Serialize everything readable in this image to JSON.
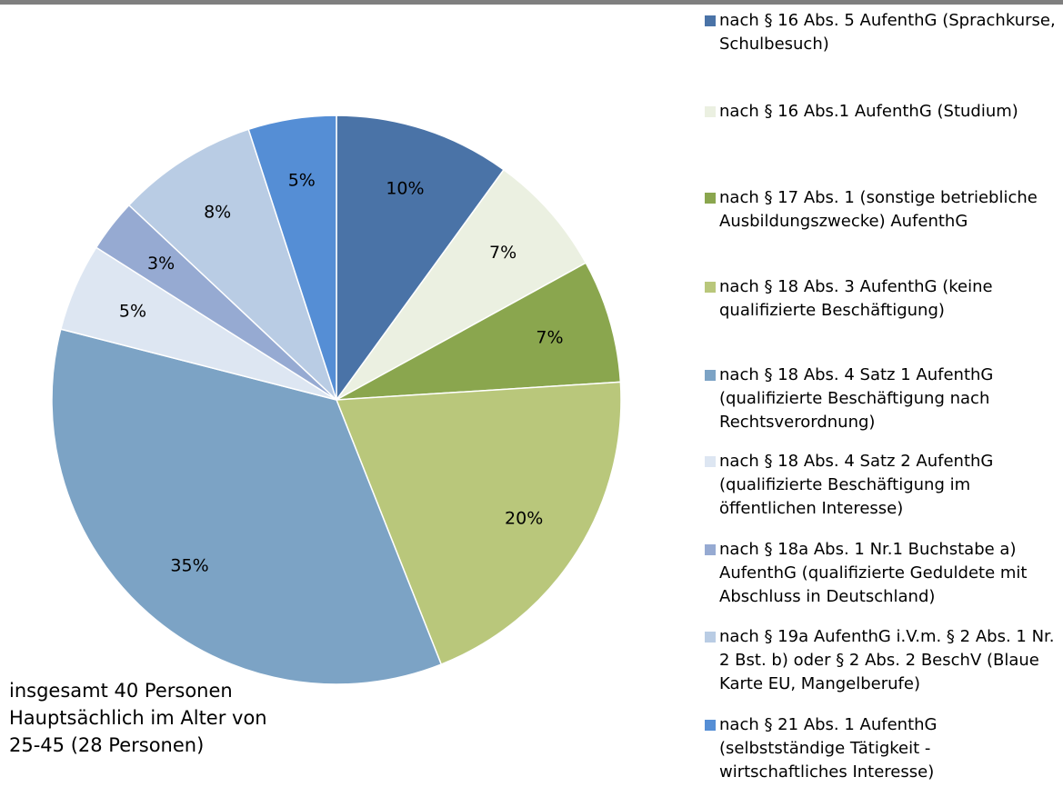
{
  "chart_data": {
    "type": "pie",
    "categories": [
      "nach § 16 Abs. 5 AufenthG (Sprachkurse, Schulbesuch)",
      "nach § 16 Abs.1 AufenthG (Studium)",
      "nach § 17 Abs. 1 (sonstige betriebliche Ausbildungszwecke) AufenthG",
      "nach § 18 Abs. 3 AufenthG (keine qualifizierte Beschäftigung)",
      "nach § 18 Abs. 4 Satz 1 AufenthG (qualifizierte Beschäftigung nach Rechtsverordnung)",
      "nach § 18 Abs. 4 Satz 2 AufenthG (qualifizierte Beschäftigung im öffentlichen Interesse)",
      "nach § 18a Abs. 1 Nr.1 Buchstabe a) AufenthG (qualifizierte Geduldete mit Abschluss in Deutschland)",
      "nach § 19a AufenthG i.V.m. § 2 Abs. 1 Nr. 2 Bst. b) oder § 2 Abs. 2 BeschV (Blaue Karte EU, Mangelberufe)",
      "nach § 21 Abs. 1 AufenthG (selbstständige Tätigkeit - wirtschaftliches Interesse)"
    ],
    "values": [
      10,
      7,
      7,
      20,
      35,
      5,
      3,
      8,
      5
    ],
    "value_labels": [
      "10%",
      "7%",
      "7%",
      "20%",
      "35%",
      "5%",
      "3%",
      "8%",
      "5%"
    ],
    "colors": [
      "#4a73a7",
      "#ebf0e1",
      "#8aa64e",
      "#b9c77b",
      "#7ca3c5",
      "#dde6f2",
      "#96aad2",
      "#b9cce4",
      "#558ed5"
    ],
    "legend": "right",
    "annotations": [
      "insgesamt 40 Personen",
      "Hauptsächlich im Alter von",
      "25-45 (28 Personen)"
    ]
  }
}
